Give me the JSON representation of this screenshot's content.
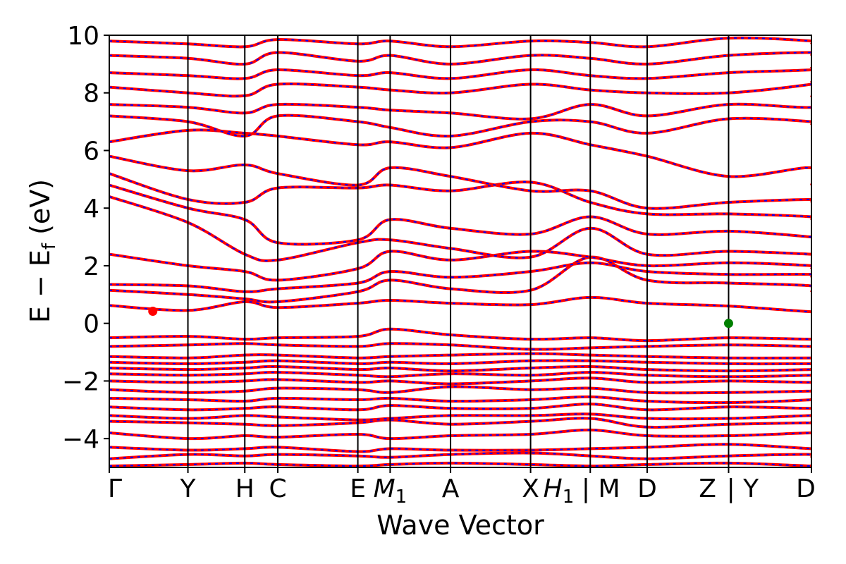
{
  "chart_data": {
    "type": "line",
    "title": "",
    "xlabel": "Wave Vector",
    "ylabel": "E − E_f (eV)",
    "ylabel_parts": {
      "prefix": "E − E",
      "subscript": "f",
      "suffix": " (eV)"
    },
    "ylim": [
      -5,
      10
    ],
    "yticks": [
      -4,
      -2,
      0,
      2,
      4,
      6,
      8,
      10
    ],
    "ytick_labels": [
      "−4",
      "−2",
      "0",
      "2",
      "4",
      "6",
      "8",
      "10"
    ],
    "xlim": [
      0,
      1
    ],
    "kpoints": [
      {
        "label": "Γ",
        "x": 0.0
      },
      {
        "label": "Y",
        "x": 0.112
      },
      {
        "label": "H",
        "x": 0.193
      },
      {
        "label": "C",
        "x": 0.24
      },
      {
        "label": "E",
        "x": 0.354
      },
      {
        "label": "M1",
        "x": 0.4
      },
      {
        "label": "A",
        "x": 0.486
      },
      {
        "label": "X",
        "x": 0.6
      },
      {
        "label": "H1 | M",
        "x": 0.685
      },
      {
        "label": "D",
        "x": 0.766
      },
      {
        "label": "Z | Y",
        "x": 0.882
      },
      {
        "label": "D",
        "x": 1.0
      }
    ],
    "tick_labels": [
      {
        "text": "Γ",
        "sub": "",
        "x": 0.0
      },
      {
        "text": "Y",
        "sub": "",
        "x": 0.112
      },
      {
        "text": "H",
        "sub": "",
        "x": 0.193
      },
      {
        "text": "C",
        "sub": "",
        "x": 0.24
      },
      {
        "text": "E",
        "sub": "",
        "x": 0.354
      },
      {
        "text": "M",
        "sub": "1",
        "x": 0.4
      },
      {
        "text": "A",
        "sub": "",
        "x": 0.486
      },
      {
        "text": "X",
        "sub": "",
        "x": 0.6
      },
      {
        "text": "H",
        "sub": "1",
        "x": 0.64
      },
      {
        "text": "| M",
        "sub": "",
        "x": 0.7
      },
      {
        "text": "D",
        "sub": "",
        "x": 0.766
      },
      {
        "text": "Z",
        "sub": "",
        "x": 0.852
      },
      {
        "text": "| Y",
        "sub": "",
        "x": 0.902
      },
      {
        "text": "D",
        "sub": "",
        "x": 1.0
      }
    ],
    "series": [
      {
        "color": "#ff0000",
        "dash": "solid"
      },
      {
        "color": "#0000ff",
        "dash": "dashed"
      }
    ],
    "markers": [
      {
        "x": 0.062,
        "y": 0.42,
        "color": "#ff0000"
      },
      {
        "x": 0.882,
        "y": 0.0,
        "color": "#008000"
      }
    ],
    "bands": [
      [
        -4.95,
        -4.9,
        -4.85,
        -4.9,
        -4.95,
        -4.9,
        -4.85,
        -4.9,
        -4.95,
        -4.9,
        -4.85,
        -4.95,
        -4.9
      ],
      [
        -4.7,
        -4.55,
        -4.6,
        -4.55,
        -4.6,
        -4.65,
        -4.55,
        -4.5,
        -4.6,
        -4.7,
        -4.6,
        -4.55,
        -4.65
      ],
      [
        -4.3,
        -4.4,
        -4.35,
        -4.3,
        -4.45,
        -4.35,
        -4.4,
        -4.4,
        -4.35,
        -4.3,
        -4.2,
        -4.35,
        -4.3
      ],
      [
        -3.8,
        -4.0,
        -3.9,
        -3.95,
        -3.85,
        -4.0,
        -3.9,
        -3.85,
        -3.7,
        -3.9,
        -3.9,
        -3.8,
        -3.85
      ],
      [
        -3.4,
        -3.45,
        -3.5,
        -3.55,
        -3.45,
        -3.35,
        -3.5,
        -3.4,
        -3.3,
        -3.6,
        -3.5,
        -3.45,
        -3.4
      ],
      [
        -3.2,
        -3.3,
        -3.2,
        -3.25,
        -3.35,
        -3.3,
        -3.2,
        -3.2,
        -3.15,
        -3.3,
        -3.3,
        -3.2,
        -3.25
      ],
      [
        -2.9,
        -3.0,
        -2.95,
        -2.9,
        -3.0,
        -2.85,
        -2.95,
        -2.95,
        -2.8,
        -3.0,
        -2.9,
        -2.95,
        -2.9
      ],
      [
        -2.6,
        -2.65,
        -2.7,
        -2.6,
        -2.65,
        -2.6,
        -2.7,
        -2.65,
        -2.55,
        -2.7,
        -2.75,
        -2.65,
        -2.6
      ],
      [
        -2.3,
        -2.4,
        -2.35,
        -2.25,
        -2.3,
        -2.4,
        -2.2,
        -2.3,
        -2.25,
        -2.4,
        -2.4,
        -2.35,
        -2.3
      ],
      [
        -2.0,
        -2.05,
        -2.0,
        -1.95,
        -2.05,
        -2.0,
        -2.1,
        -2.0,
        -1.9,
        -2.05,
        -2.0,
        -2.05,
        -2.0
      ],
      [
        -1.75,
        -1.8,
        -1.75,
        -1.7,
        -1.8,
        -1.85,
        -1.75,
        -1.8,
        -1.7,
        -1.8,
        -1.85,
        -1.8,
        -1.75
      ],
      [
        -1.55,
        -1.6,
        -1.55,
        -1.5,
        -1.6,
        -1.55,
        -1.65,
        -1.55,
        -1.5,
        -1.6,
        -1.65,
        -1.6,
        -1.55
      ],
      [
        -1.35,
        -1.4,
        -1.35,
        -1.3,
        -1.4,
        -1.35,
        -1.4,
        -1.3,
        -1.3,
        -1.35,
        -1.4,
        -1.4,
        -1.35
      ],
      [
        -1.15,
        -1.2,
        -1.1,
        -1.1,
        -1.2,
        -1.15,
        -1.1,
        -1.05,
        -1.1,
        -1.15,
        -1.2,
        -1.2,
        -1.15
      ],
      [
        -0.8,
        -0.75,
        -0.7,
        -0.75,
        -0.8,
        -0.7,
        -0.75,
        -0.9,
        -0.85,
        -0.8,
        -0.75,
        -0.8,
        -0.8
      ],
      [
        -0.5,
        -0.45,
        -0.55,
        -0.5,
        -0.45,
        -0.2,
        -0.4,
        -0.55,
        -0.5,
        -0.6,
        -0.5,
        -0.55,
        -0.5
      ],
      [
        0.62,
        0.45,
        0.75,
        0.55,
        0.7,
        0.8,
        0.7,
        0.65,
        0.9,
        0.7,
        0.6,
        0.4,
        0.45
      ],
      [
        1.15,
        1.0,
        0.85,
        0.75,
        1.1,
        1.5,
        1.2,
        1.15,
        2.3,
        1.5,
        1.4,
        1.3,
        1.1
      ],
      [
        1.35,
        1.3,
        1.1,
        1.2,
        1.4,
        1.8,
        1.6,
        1.8,
        2.1,
        1.8,
        1.7,
        1.7,
        1.6
      ],
      [
        2.4,
        2.0,
        1.8,
        1.5,
        1.9,
        2.5,
        2.2,
        2.5,
        2.3,
        2.0,
        2.1,
        2.0,
        1.9
      ],
      [
        4.4,
        3.5,
        2.4,
        2.2,
        2.8,
        2.9,
        2.6,
        2.3,
        3.3,
        2.4,
        2.5,
        2.4,
        2.4
      ],
      [
        4.8,
        4.0,
        3.6,
        2.8,
        2.9,
        3.6,
        3.3,
        3.1,
        3.7,
        3.1,
        3.2,
        3.0,
        3.0
      ],
      [
        5.2,
        4.3,
        4.2,
        4.7,
        4.7,
        4.8,
        4.6,
        4.9,
        4.2,
        3.8,
        3.8,
        3.7,
        3.6
      ],
      [
        5.8,
        5.3,
        5.5,
        5.2,
        4.8,
        5.4,
        5.1,
        4.6,
        4.6,
        4.0,
        4.2,
        4.3,
        4.2
      ],
      [
        6.3,
        6.7,
        6.6,
        6.5,
        6.2,
        6.3,
        6.1,
        6.6,
        6.2,
        5.8,
        5.1,
        5.4,
        4.8
      ],
      [
        7.2,
        7.0,
        6.5,
        7.2,
        7.0,
        6.8,
        6.5,
        7.0,
        7.0,
        6.6,
        7.1,
        7.0,
        6.9
      ],
      [
        7.6,
        7.5,
        7.3,
        7.6,
        7.5,
        7.4,
        7.3,
        7.1,
        7.6,
        7.2,
        7.6,
        7.5,
        7.9
      ],
      [
        8.2,
        8.0,
        7.9,
        8.3,
        8.2,
        8.1,
        8.0,
        8.3,
        8.1,
        8.0,
        8.0,
        8.3,
        8.4
      ],
      [
        8.7,
        8.6,
        8.5,
        8.8,
        8.6,
        8.7,
        8.5,
        8.8,
        8.6,
        8.5,
        8.7,
        8.8,
        8.9
      ],
      [
        9.3,
        9.2,
        9.0,
        9.4,
        9.1,
        9.3,
        9.0,
        9.3,
        9.2,
        9.0,
        9.3,
        9.4,
        9.3
      ],
      [
        9.8,
        9.7,
        9.6,
        9.85,
        9.7,
        9.8,
        9.6,
        9.8,
        9.75,
        9.6,
        9.9,
        9.8,
        9.7
      ]
    ]
  }
}
